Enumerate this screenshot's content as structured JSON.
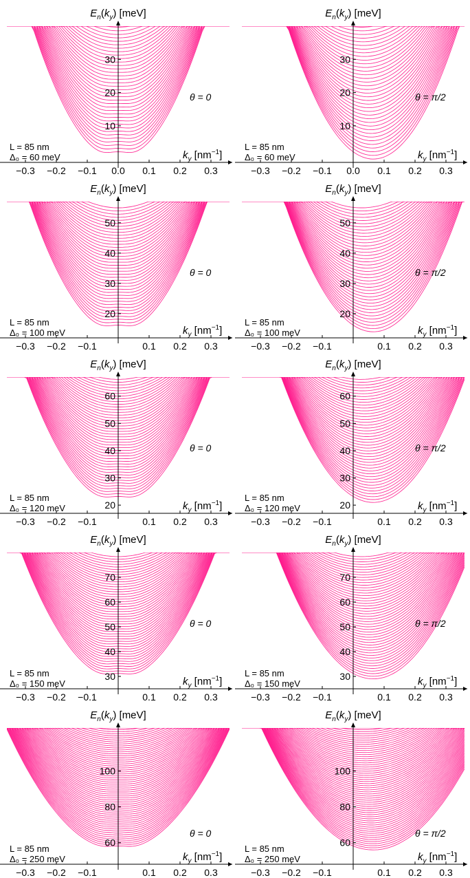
{
  "chart_data": [
    {
      "type": "line",
      "panel": "row1-left",
      "ylabel": "E_n(k_y) [meV]",
      "xlabel": "k_y [nm^-1]",
      "theta": "θ = 0",
      "L": "L = 85 nm",
      "delta": "Δ₀ = 60 meV",
      "xticks": [
        "−0.3",
        "−0.2",
        "−0.1",
        "0.0",
        "0.1",
        "0.2",
        "0.3"
      ],
      "yticks": [
        10,
        20,
        30
      ],
      "xlim": [
        -0.36,
        0.36
      ],
      "ylim": [
        -1,
        40
      ],
      "E0": 0,
      "delta0": 60,
      "theta_rad": 0,
      "nbands": 38,
      "band_spacing": 1.05,
      "band_top": 40
    },
    {
      "type": "line",
      "panel": "row1-right",
      "ylabel": "E_n(k_y) [meV]",
      "xlabel": "k_y [nm^-1]",
      "theta": "θ = π/2",
      "L": "L = 85 nm",
      "delta": "Δ₀ = 60 meV",
      "xticks": [
        "−0.3",
        "−0.2",
        "−0.1",
        "0.0",
        "0.1",
        "0.2",
        "0.3"
      ],
      "yticks": [
        10,
        20,
        30
      ],
      "xlim": [
        -0.36,
        0.36
      ],
      "ylim": [
        -1,
        40
      ],
      "E0": 0,
      "delta0": 60,
      "theta_rad": 1.5708,
      "nbands": 38,
      "band_spacing": 1.05,
      "band_top": 40
    },
    {
      "type": "line",
      "panel": "row2-left",
      "ylabel": "E_n(k_y) [meV]",
      "xlabel": "k_y [nm^-1]",
      "theta": "θ = 0",
      "L": "L = 85 nm",
      "delta": "Δ₀ = 100 meV",
      "xticks": [
        "−0.3",
        "−0.2",
        "−0.1",
        "0.1",
        "0.2",
        "0.3"
      ],
      "yticks": [
        20,
        30,
        40,
        50
      ],
      "xlim": [
        -0.36,
        0.36
      ],
      "ylim": [
        12,
        57
      ],
      "E0": 14,
      "delta0": 100,
      "theta_rad": 0,
      "nbands": 40,
      "band_spacing": 1.0,
      "band_top": 57
    },
    {
      "type": "line",
      "panel": "row2-right",
      "ylabel": "E_n(k_y) [meV]",
      "xlabel": "k_y [nm^-1]",
      "theta": "θ = π/2",
      "L": "L = 85 nm",
      "delta": "Δ₀ = 100 meV",
      "xticks": [
        "−0.3",
        "−0.2",
        "−0.1",
        "0.1",
        "0.2",
        "0.3"
      ],
      "yticks": [
        20,
        30,
        40,
        50
      ],
      "xlim": [
        -0.36,
        0.36
      ],
      "ylim": [
        12,
        57
      ],
      "E0": 14,
      "delta0": 100,
      "theta_rad": 1.5708,
      "nbands": 40,
      "band_spacing": 1.0,
      "band_top": 57
    },
    {
      "type": "line",
      "panel": "row3-left",
      "ylabel": "E_n(k_y) [meV]",
      "xlabel": "k_y [nm^-1]",
      "theta": "θ = 0",
      "L": "L = 85 nm",
      "delta": "Δ₀ = 120 meV",
      "xticks": [
        "−0.3",
        "−0.2",
        "−0.1",
        "0.1",
        "0.2",
        "0.3"
      ],
      "yticks": [
        20,
        30,
        40,
        50,
        60
      ],
      "xlim": [
        -0.36,
        0.36
      ],
      "ylim": [
        17,
        67
      ],
      "E0": 21,
      "delta0": 120,
      "theta_rad": 0,
      "nbands": 44,
      "band_spacing": 1.0,
      "band_top": 67
    },
    {
      "type": "line",
      "panel": "row3-right",
      "ylabel": "E_n(k_y) [meV]",
      "xlabel": "k_y [nm^-1]",
      "theta": "θ = π/2",
      "L": "L = 85 nm",
      "delta": "Δ₀ = 120 meV",
      "xticks": [
        "−0.3",
        "−0.2",
        "−0.1",
        "0.1",
        "0.2",
        "0.3"
      ],
      "yticks": [
        20,
        30,
        40,
        50,
        60
      ],
      "xlim": [
        -0.36,
        0.36
      ],
      "ylim": [
        17,
        67
      ],
      "E0": 21,
      "delta0": 120,
      "theta_rad": 1.5708,
      "nbands": 44,
      "band_spacing": 1.0,
      "band_top": 67
    },
    {
      "type": "line",
      "panel": "row4-left",
      "ylabel": "E_n(k_y) [meV]",
      "xlabel": "k_y [nm^-1]",
      "theta": "θ = 0",
      "L": "L = 85 nm",
      "delta": "Δ₀ = 150 meV",
      "xticks": [
        "−0.3",
        "−0.2",
        "−0.1",
        "0.1",
        "0.2",
        "0.3"
      ],
      "yticks": [
        30,
        40,
        50,
        60,
        70
      ],
      "xlim": [
        -0.36,
        0.36
      ],
      "ylim": [
        25,
        80
      ],
      "E0": 29,
      "delta0": 150,
      "theta_rad": 0,
      "nbands": 48,
      "band_spacing": 1.0,
      "band_top": 80
    },
    {
      "type": "line",
      "panel": "row4-right",
      "ylabel": "E_n(k_y) [meV]",
      "xlabel": "k_y [nm^-1]",
      "theta": "θ = π/2",
      "L": "L = 85 nm",
      "delta": "Δ₀ = 150 meV",
      "xticks": [
        "−0.3",
        "−0.2",
        "−0.1",
        "0.1",
        "0.2",
        "0.3"
      ],
      "yticks": [
        30,
        40,
        50,
        60,
        70
      ],
      "xlim": [
        -0.36,
        0.36
      ],
      "ylim": [
        25,
        80
      ],
      "E0": 29,
      "delta0": 150,
      "theta_rad": 1.5708,
      "nbands": 48,
      "band_spacing": 1.0,
      "band_top": 80
    },
    {
      "type": "line",
      "panel": "row5-left",
      "ylabel": "E_n(k_y) [meV]",
      "xlabel": "k_y [nm^-1]",
      "theta": "θ = 0",
      "L": "L = 85 nm",
      "delta": "Δ₀ = 250 meV",
      "xticks": [
        "−0.3",
        "−0.2",
        "−0.1",
        "0.1",
        "0.2",
        "0.3"
      ],
      "yticks": [
        60,
        80,
        100
      ],
      "xlim": [
        -0.36,
        0.36
      ],
      "ylim": [
        48,
        124
      ],
      "E0": 56,
      "delta0": 250,
      "theta_rad": 0,
      "nbands": 62,
      "band_spacing": 1.1,
      "band_top": 124
    },
    {
      "type": "line",
      "panel": "row5-right",
      "ylabel": "E_n(k_y) [meV]",
      "xlabel": "k_y [nm^-1]",
      "theta": "θ = π/2",
      "L": "L = 85 nm",
      "delta": "Δ₀ = 250 meV",
      "xticks": [
        "−0.3",
        "−0.2",
        "−0.1",
        "0.1",
        "0.2",
        "0.3"
      ],
      "yticks": [
        60,
        80,
        100
      ],
      "xlim": [
        -0.36,
        0.36
      ],
      "ylim": [
        48,
        124
      ],
      "E0": 56,
      "delta0": 250,
      "theta_rad": 1.5708,
      "nbands": 62,
      "band_spacing": 1.1,
      "band_top": 124
    }
  ],
  "colors": {
    "curve": "#ff1a8c",
    "axis": "#000000"
  }
}
